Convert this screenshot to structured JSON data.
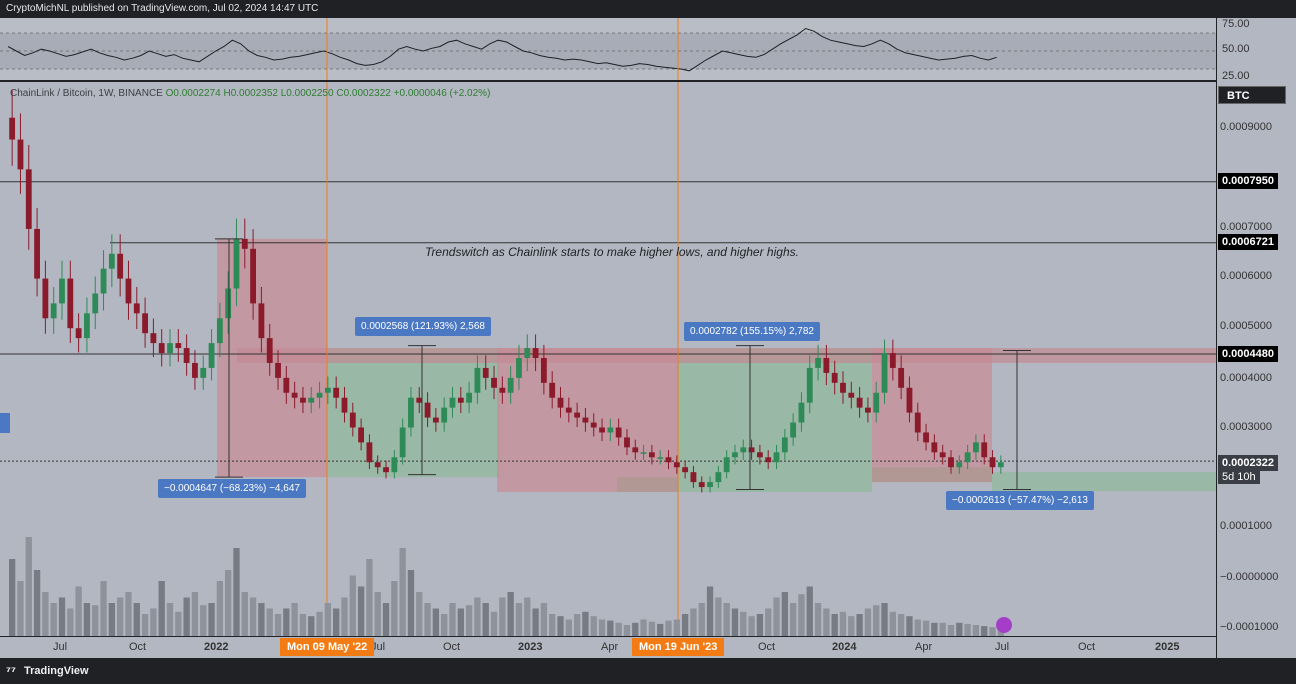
{
  "header": {
    "published": "CryptoMichNL published on TradingView.com, Jul 02, 2024 14:47 UTC"
  },
  "legend": {
    "symbol": "ChainLink / Bitcoin, 1W, BINANCE",
    "o": "O0.0002274",
    "h": "H0.0002352",
    "l": "L0.0002250",
    "c": "C0.0002322",
    "chg": "+0.0000046 (+2.02%)"
  },
  "currency_button": "BTC",
  "annotation": "Trendswitch as Chainlink starts to make higher lows, and higher highs.",
  "measures": {
    "m1": "0.0002568 (121.93%) 2,568",
    "m2": "0.0002782 (155.15%) 2,782",
    "m3": "−0.0004647 (−68.23%) −4,647",
    "m4": "−0.0002613 (−57.47%) −2,613"
  },
  "date_labels": {
    "d1": "Mon 09 May '22",
    "d2": "Mon 19 Jun '23"
  },
  "price_axis": {
    "ticks": [
      "0.0009000",
      "0.0007000",
      "0.0006000",
      "0.0005000",
      "0.0004000",
      "0.0003000",
      "0.0001000",
      "−0.0000000",
      "−0.0001000"
    ],
    "levels": [
      "0.0007950",
      "0.0006721",
      "0.0004480"
    ],
    "current": "0.0002322",
    "countdown": "5d 10h"
  },
  "rsi_axis": [
    "75.00",
    "50.00",
    "25.00"
  ],
  "time_axis": [
    "Jul",
    "Oct",
    "2022",
    "Jul",
    "Oct",
    "2023",
    "Apr",
    "Oct",
    "2024",
    "Apr",
    "Jul",
    "Oct",
    "2025"
  ],
  "footer": {
    "brand": "TradingView"
  },
  "colors": {
    "up": "#2e8b57",
    "down": "#8b1a2b",
    "zone_red": "#c98a94",
    "zone_green": "#8fb89a",
    "measure": "#4a78c2",
    "date_marker": "#f37b13"
  },
  "chart_data": {
    "type": "candlestick",
    "symbol": "ChainLink / Bitcoin",
    "interval": "1W",
    "ylim": [
      -0.00012,
      0.001
    ],
    "horizontal_levels": [
      0.000795,
      0.0006721,
      0.000448
    ],
    "close_series": [
      0.00088,
      0.00082,
      0.0007,
      0.0006,
      0.00052,
      0.00055,
      0.0006,
      0.0005,
      0.00048,
      0.00053,
      0.00057,
      0.00062,
      0.00065,
      0.0006,
      0.00055,
      0.00053,
      0.00049,
      0.00047,
      0.00045,
      0.00047,
      0.00046,
      0.00043,
      0.0004,
      0.00042,
      0.00047,
      0.00052,
      0.00058,
      0.00068,
      0.00066,
      0.00055,
      0.00048,
      0.00043,
      0.0004,
      0.00037,
      0.00036,
      0.00035,
      0.00036,
      0.00037,
      0.00038,
      0.00036,
      0.00033,
      0.0003,
      0.00027,
      0.00023,
      0.00022,
      0.00021,
      0.00024,
      0.0003,
      0.00036,
      0.00035,
      0.00032,
      0.00031,
      0.00034,
      0.00036,
      0.00035,
      0.00037,
      0.00042,
      0.0004,
      0.00038,
      0.00037,
      0.0004,
      0.00044,
      0.00046,
      0.00044,
      0.00039,
      0.00036,
      0.00034,
      0.00033,
      0.00032,
      0.00031,
      0.0003,
      0.00029,
      0.0003,
      0.00028,
      0.00026,
      0.00025,
      0.00025,
      0.00024,
      0.00024,
      0.00023,
      0.00022,
      0.00021,
      0.00019,
      0.00018,
      0.00019,
      0.00021,
      0.00024,
      0.00025,
      0.00026,
      0.00025,
      0.00024,
      0.00023,
      0.00025,
      0.00028,
      0.00031,
      0.00035,
      0.00042,
      0.00044,
      0.00041,
      0.00039,
      0.00037,
      0.00036,
      0.00034,
      0.00033,
      0.00037,
      0.00045,
      0.00042,
      0.00038,
      0.00033,
      0.00029,
      0.00027,
      0.00025,
      0.00024,
      0.00022,
      0.00023,
      0.00025,
      0.00027,
      0.00024,
      0.00022,
      0.00023
    ],
    "volume_series": [
      0.7,
      0.5,
      0.9,
      0.6,
      0.4,
      0.3,
      0.35,
      0.25,
      0.45,
      0.3,
      0.28,
      0.5,
      0.3,
      0.35,
      0.4,
      0.3,
      0.2,
      0.25,
      0.5,
      0.3,
      0.22,
      0.35,
      0.4,
      0.28,
      0.3,
      0.5,
      0.6,
      0.8,
      0.4,
      0.35,
      0.3,
      0.25,
      0.2,
      0.25,
      0.3,
      0.2,
      0.18,
      0.22,
      0.3,
      0.25,
      0.35,
      0.55,
      0.45,
      0.7,
      0.4,
      0.3,
      0.5,
      0.8,
      0.6,
      0.4,
      0.3,
      0.25,
      0.2,
      0.3,
      0.25,
      0.28,
      0.35,
      0.3,
      0.22,
      0.35,
      0.4,
      0.3,
      0.35,
      0.25,
      0.3,
      0.2,
      0.18,
      0.15,
      0.2,
      0.22,
      0.18,
      0.15,
      0.14,
      0.12,
      0.1,
      0.12,
      0.15,
      0.13,
      0.11,
      0.14,
      0.15,
      0.2,
      0.25,
      0.3,
      0.45,
      0.35,
      0.3,
      0.25,
      0.22,
      0.18,
      0.2,
      0.25,
      0.35,
      0.4,
      0.3,
      0.38,
      0.45,
      0.3,
      0.25,
      0.2,
      0.22,
      0.18,
      0.2,
      0.25,
      0.28,
      0.3,
      0.22,
      0.2,
      0.18,
      0.15,
      0.14,
      0.12,
      0.12,
      0.1,
      0.12,
      0.11,
      0.1,
      0.09,
      0.08,
      0.07
    ],
    "rsi_series": [
      55,
      50,
      45,
      48,
      52,
      50,
      47,
      44,
      46,
      49,
      52,
      48,
      45,
      43,
      40,
      42,
      45,
      50,
      47,
      44,
      46,
      42,
      40,
      38,
      44,
      50,
      55,
      62,
      58,
      50,
      45,
      43,
      40,
      41,
      43,
      44,
      46,
      48,
      50,
      47,
      43,
      40,
      36,
      34,
      35,
      38,
      44,
      52,
      55,
      52,
      50,
      53,
      55,
      60,
      62,
      58,
      55,
      52,
      58,
      62,
      60,
      55,
      50,
      48,
      45,
      43,
      42,
      40,
      41,
      40,
      38,
      36,
      37,
      35,
      33,
      34,
      36,
      35,
      33,
      32,
      31,
      30,
      28,
      34,
      40,
      45,
      50,
      48,
      46,
      44,
      43,
      46,
      52,
      58,
      63,
      68,
      75,
      72,
      66,
      62,
      60,
      58,
      56,
      55,
      58,
      62,
      58,
      52,
      48,
      46,
      44,
      42,
      40,
      41,
      42,
      44,
      45,
      42,
      40,
      43
    ],
    "annotations": [
      {
        "text": "Trendswitch as Chainlink starts to make higher lows, and higher highs."
      }
    ]
  }
}
